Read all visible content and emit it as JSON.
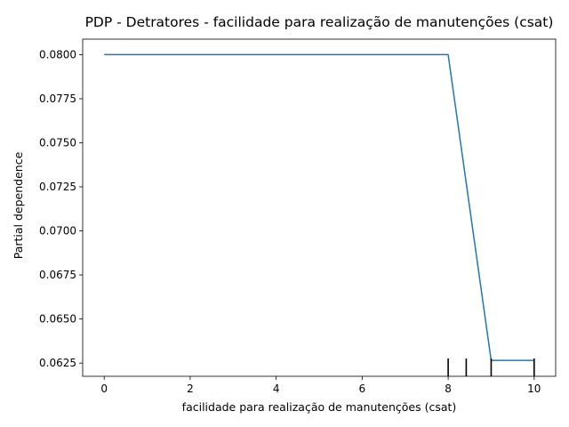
{
  "chart_data": {
    "type": "line",
    "title": "PDP - Detratores - facilidade para realização de manutenções (csat)",
    "xlabel": "facilidade para realização de manutenções (csat)",
    "ylabel": "Partial dependence",
    "xlim": [
      -0.5,
      10.5
    ],
    "ylim": [
      0.06175,
      0.08088
    ],
    "x_ticks": [
      0,
      2,
      4,
      6,
      8,
      10
    ],
    "y_ticks": [
      0.0625,
      0.065,
      0.0675,
      0.07,
      0.0725,
      0.075,
      0.0775,
      0.08
    ],
    "series": [
      {
        "color": "#1f77b4",
        "x": [
          0,
          1,
          2,
          3,
          4,
          5,
          6,
          7,
          8,
          9,
          10
        ],
        "y": [
          0.08,
          0.08,
          0.08,
          0.08,
          0.08,
          0.08,
          0.08,
          0.08,
          0.08,
          0.06265,
          0.06265
        ]
      }
    ],
    "rug": [
      8,
      8.42,
      9,
      10
    ],
    "grid": false
  }
}
